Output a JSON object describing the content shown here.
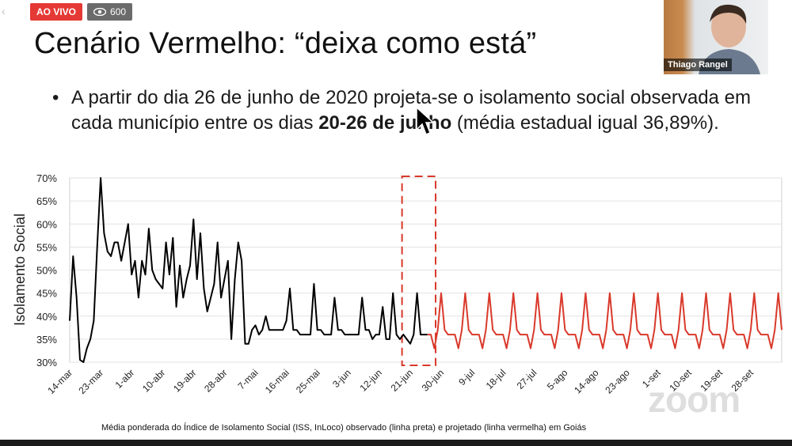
{
  "stream": {
    "live_label": "AO VIVO",
    "viewer_count": "600",
    "eye_icon": "eye-icon",
    "live_color": "#e53935"
  },
  "video": {
    "participant_name": "Thiago Rangel"
  },
  "slide": {
    "title": "Cenário Vermelho: “deixa como está”",
    "bullet_part1": "A partir do dia 26 de junho de 2020 projeta-se o isolamento social observada em cada município entre os dias ",
    "bullet_bold": "20-26 de junho",
    "bullet_part2": " (média estadual igual 36,89%).",
    "caption": "Média ponderada do Índice de Isolamento Social (ISS, InLoco) observado (linha preta) e projetado (linha vermelha) em Goiás"
  },
  "watermark": "zoom",
  "chart_data": {
    "type": "line",
    "ylabel": "Isolamento Social",
    "xlabel": "",
    "ylim": [
      30,
      70
    ],
    "yticks": [
      "30%",
      "35%",
      "40%",
      "45%",
      "50%",
      "55%",
      "60%",
      "65%",
      "70%"
    ],
    "x_start": "14-mar",
    "x_end_day_index": 207,
    "xticks": [
      {
        "label": "14-mar",
        "day": 0
      },
      {
        "label": "23-mar",
        "day": 9
      },
      {
        "label": "1-abr",
        "day": 18
      },
      {
        "label": "10-abr",
        "day": 27
      },
      {
        "label": "19-abr",
        "day": 36
      },
      {
        "label": "28-abr",
        "day": 45
      },
      {
        "label": "7-mai",
        "day": 54
      },
      {
        "label": "16-mai",
        "day": 63
      },
      {
        "label": "25-mai",
        "day": 72
      },
      {
        "label": "3-jun",
        "day": 81
      },
      {
        "label": "12-jun",
        "day": 90
      },
      {
        "label": "21-jun",
        "day": 99
      },
      {
        "label": "30-jun",
        "day": 108
      },
      {
        "label": "9-jul",
        "day": 117
      },
      {
        "label": "18-jul",
        "day": 126
      },
      {
        "label": "27-jul",
        "day": 135
      },
      {
        "label": "5-ago",
        "day": 144
      },
      {
        "label": "14-ago",
        "day": 153
      },
      {
        "label": "23-ago",
        "day": 162
      },
      {
        "label": "1-set",
        "day": 171
      },
      {
        "label": "10-set",
        "day": 180
      },
      {
        "label": "19-set",
        "day": 189
      },
      {
        "label": "28-set",
        "day": 198
      }
    ],
    "highlight_window": {
      "from_day": 98,
      "to_day": 105,
      "label": "20-26 de junho",
      "color": "#d9392b"
    },
    "series": [
      {
        "name": "observado",
        "color": "#000000",
        "start_day": 0,
        "values": [
          39,
          53,
          44,
          30.5,
          30,
          33,
          35,
          39,
          55,
          70,
          58,
          54,
          53,
          56,
          56,
          52,
          56,
          60,
          49,
          52,
          44,
          52,
          49,
          59,
          50,
          48,
          47,
          46,
          56,
          49,
          57,
          42,
          51,
          44,
          48,
          51,
          61,
          48,
          58,
          46,
          41,
          44,
          47,
          56,
          44,
          48,
          52,
          35,
          48,
          56,
          52,
          34,
          34,
          37,
          38,
          36,
          37,
          40,
          37,
          37,
          37,
          37,
          37,
          39,
          46,
          37,
          37,
          36,
          36,
          36,
          36,
          47,
          37,
          37,
          36,
          36,
          36,
          44,
          37,
          37,
          36,
          36,
          36,
          36,
          36,
          44,
          37,
          37,
          35,
          36,
          36,
          42,
          35,
          35,
          45,
          36,
          35,
          36,
          35,
          34,
          36,
          45,
          36,
          36,
          36
        ]
      },
      {
        "name": "projetado",
        "color": "#d9392b",
        "start_day": 105,
        "pattern": [
          36,
          33,
          37,
          45,
          37,
          36,
          36
        ],
        "end_day": 207
      }
    ]
  }
}
